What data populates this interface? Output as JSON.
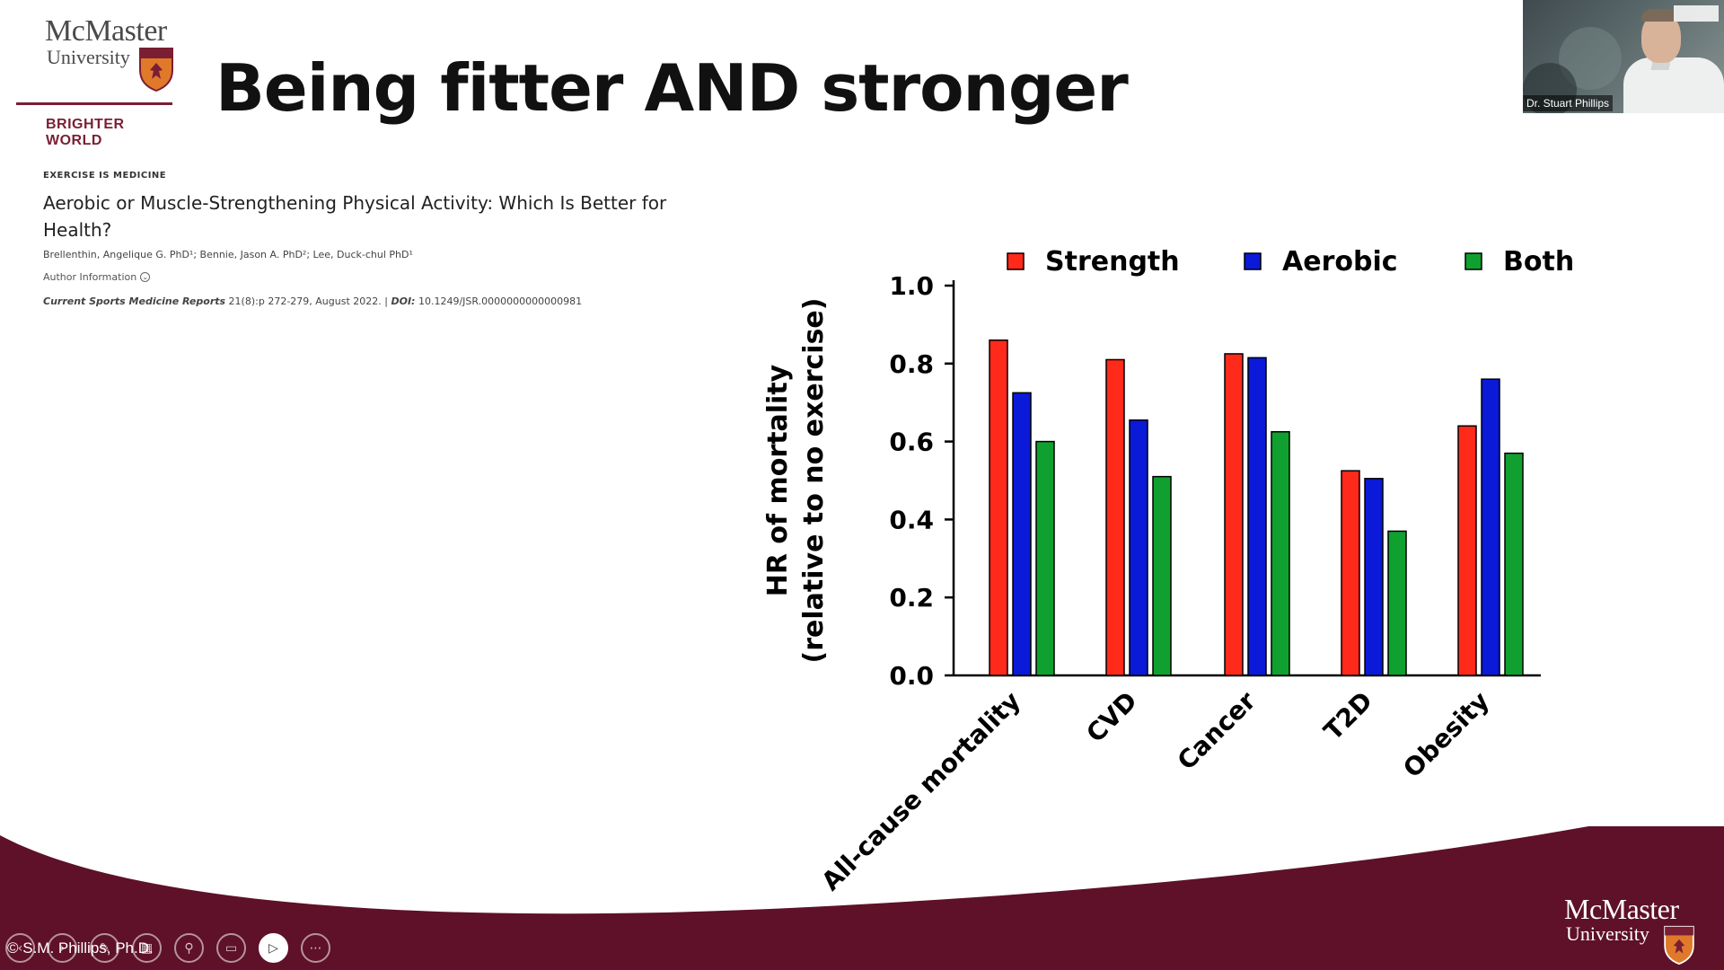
{
  "logo": {
    "line1": "McMaster",
    "line2": "University",
    "tagline": "BRIGHTER WORLD"
  },
  "slide_title": "Being fitter AND stronger",
  "article": {
    "category": "EXERCISE IS MEDICINE",
    "title": "Aerobic or Muscle-Strengthening Physical Activity: Which Is Better for Health?",
    "authors": "Brellenthin, Angelique G. PhD¹; Bennie, Jason A. PhD²; Lee, Duck-chul PhD¹",
    "author_info": "Author Information",
    "journal_name": "Current Sports Medicine Reports",
    "journal_details": " 21(8):p 272-279, August 2022. | ",
    "doi_label": "DOI:",
    "doi_value": " 10.1249/JSR.0000000000000981"
  },
  "webcam": {
    "name": "Dr. Stuart Phillips"
  },
  "chart_data": {
    "type": "bar",
    "categories": [
      "All-cause mortality",
      "CVD",
      "Cancer",
      "T2D",
      "Obesity"
    ],
    "series": [
      {
        "name": "Strength",
        "color": "#ff2a1a",
        "values": [
          0.86,
          0.81,
          0.825,
          0.525,
          0.64
        ]
      },
      {
        "name": "Aerobic",
        "color": "#0a1ad8",
        "values": [
          0.725,
          0.655,
          0.815,
          0.505,
          0.76
        ]
      },
      {
        "name": "Both",
        "color": "#0fa030",
        "values": [
          0.6,
          0.51,
          0.625,
          0.37,
          0.57
        ]
      }
    ],
    "ylabel_line1": "HR of mortality",
    "ylabel_line2": "(relative to no exercise)",
    "ylim": [
      0,
      1.0
    ],
    "yticks": [
      "0.0",
      "0.2",
      "0.4",
      "0.6",
      "0.8",
      "1.0"
    ],
    "legend_position": "top"
  },
  "footer": {
    "copyright": "© S.M. Phillips, Ph.D.",
    "logo_line1": "McMaster",
    "logo_line2": "University",
    "bg_color": "#5e1128"
  },
  "toolbar": {
    "items": [
      "prev-icon",
      "next-icon",
      "pen-icon",
      "grid-icon",
      "zoom-icon",
      "subtitles-icon",
      "camera-icon",
      "more-icon"
    ]
  }
}
